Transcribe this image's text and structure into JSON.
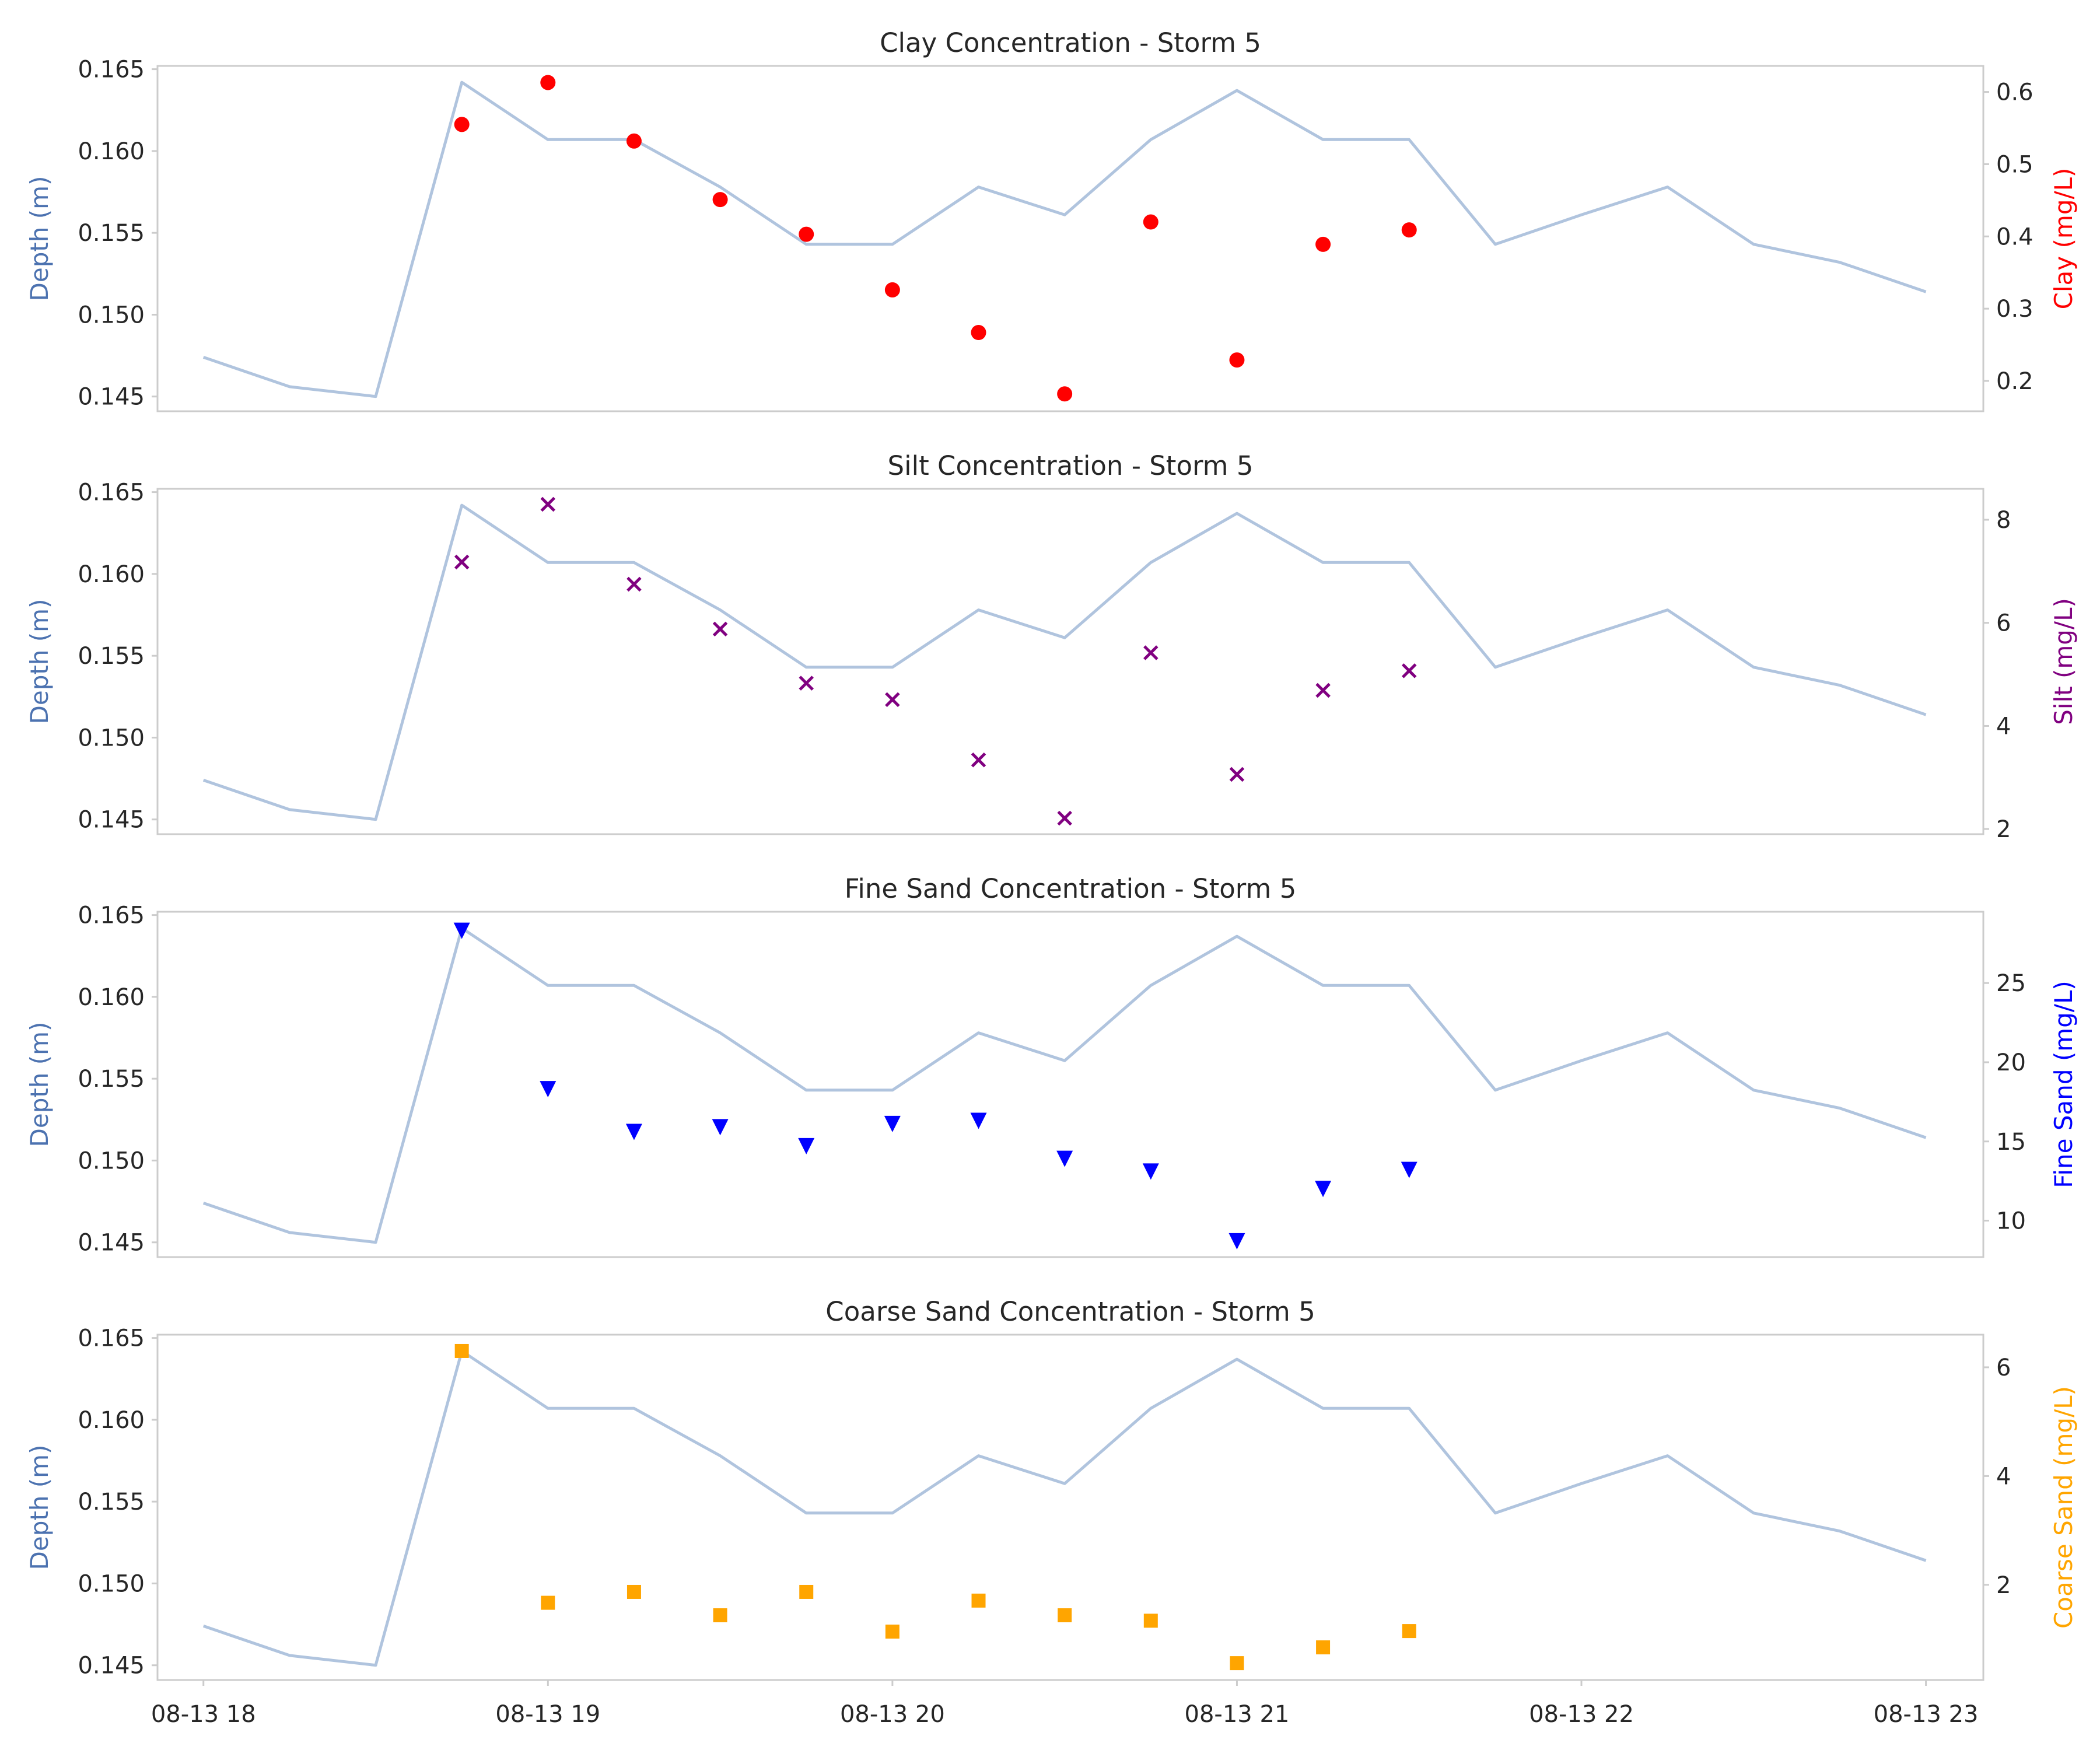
{
  "figure": {
    "depth_axis_label": "Depth (m)",
    "depth_color": "#4c72b0",
    "depth_line_color": "#b0c4de",
    "frame_color": "#cccccc",
    "text_color": "#262626"
  },
  "chart_data": [
    {
      "type": "line+scatter",
      "title": "Clay Concentration - Storm 5",
      "ylabel_left": "Depth (m)",
      "ylabel_right": "Clay (mg/L)",
      "right_color": "#ff0000",
      "marker": "circle",
      "ylim_left": [
        0.1441,
        0.1652
      ],
      "yticks_left": [
        "0.145",
        "0.150",
        "0.155",
        "0.160",
        "0.165"
      ],
      "ylim_right": [
        0.158,
        0.636
      ],
      "yticks_right": [
        "0.2",
        "0.3",
        "0.4",
        "0.5",
        "0.6"
      ],
      "xlim": [
        "08-13 17:52",
        "08-13 23:10"
      ],
      "xticks": [
        "08-13 18",
        "08-13 19",
        "08-13 20",
        "08-13 21",
        "08-13 22",
        "08-13 23"
      ],
      "grid": false,
      "depth_series": {
        "name": "Depth (m)",
        "x": [
          "08-13 18:00",
          "08-13 18:15",
          "08-13 18:30",
          "08-13 18:45",
          "08-13 19:00",
          "08-13 19:15",
          "08-13 19:30",
          "08-13 19:45",
          "08-13 20:00",
          "08-13 20:15",
          "08-13 20:30",
          "08-13 20:45",
          "08-13 21:00",
          "08-13 21:15",
          "08-13 21:30",
          "08-13 21:45",
          "08-13 22:00",
          "08-13 22:15",
          "08-13 22:30",
          "08-13 22:45",
          "08-13 23:00"
        ],
        "y": [
          0.1474,
          0.1456,
          0.145,
          0.1642,
          0.1607,
          0.1607,
          0.1578,
          0.1543,
          0.1543,
          0.1578,
          0.1561,
          0.1607,
          0.1637,
          0.1607,
          0.1607,
          0.1543,
          0.1561,
          0.1578,
          0.1543,
          0.1532,
          0.1514
        ]
      },
      "concentration_series": {
        "name": "Clay (mg/L)",
        "x": [
          "08-13 18:45",
          "08-13 19:00",
          "08-13 19:15",
          "08-13 19:30",
          "08-13 19:45",
          "08-13 20:00",
          "08-13 20:15",
          "08-13 20:30",
          "08-13 20:45",
          "08-13 21:00",
          "08-13 21:15",
          "08-13 21:30"
        ],
        "y": [
          0.555,
          0.613,
          0.532,
          0.451,
          0.403,
          0.326,
          0.267,
          0.182,
          0.42,
          0.229,
          0.389,
          0.409
        ]
      }
    },
    {
      "type": "line+scatter",
      "title": "Silt Concentration - Storm 5",
      "ylabel_left": "Depth (m)",
      "ylabel_right": "Silt (mg/L)",
      "right_color": "#800080",
      "marker": "x",
      "ylim_left": [
        0.1441,
        0.1652
      ],
      "yticks_left": [
        "0.145",
        "0.150",
        "0.155",
        "0.160",
        "0.165"
      ],
      "ylim_right": [
        1.9,
        8.6
      ],
      "yticks_right": [
        "2",
        "4",
        "6",
        "8"
      ],
      "xlim": [
        "08-13 17:52",
        "08-13 23:10"
      ],
      "xticks": [
        "08-13 18",
        "08-13 19",
        "08-13 20",
        "08-13 21",
        "08-13 22",
        "08-13 23"
      ],
      "grid": false,
      "depth_series": {
        "name": "Depth (m)",
        "x": [
          "08-13 18:00",
          "08-13 18:15",
          "08-13 18:30",
          "08-13 18:45",
          "08-13 19:00",
          "08-13 19:15",
          "08-13 19:30",
          "08-13 19:45",
          "08-13 20:00",
          "08-13 20:15",
          "08-13 20:30",
          "08-13 20:45",
          "08-13 21:00",
          "08-13 21:15",
          "08-13 21:30",
          "08-13 21:45",
          "08-13 22:00",
          "08-13 22:15",
          "08-13 22:30",
          "08-13 22:45",
          "08-13 23:00"
        ],
        "y": [
          0.1474,
          0.1456,
          0.145,
          0.1642,
          0.1607,
          0.1607,
          0.1578,
          0.1543,
          0.1543,
          0.1578,
          0.1561,
          0.1607,
          0.1637,
          0.1607,
          0.1607,
          0.1543,
          0.1561,
          0.1578,
          0.1543,
          0.1532,
          0.1514
        ]
      },
      "concentration_series": {
        "name": "Silt (mg/L)",
        "x": [
          "08-13 18:45",
          "08-13 19:00",
          "08-13 19:15",
          "08-13 19:30",
          "08-13 19:45",
          "08-13 20:00",
          "08-13 20:15",
          "08-13 20:30",
          "08-13 20:45",
          "08-13 21:00",
          "08-13 21:15",
          "08-13 21:30"
        ],
        "y": [
          7.18,
          8.3,
          6.75,
          5.88,
          4.83,
          4.51,
          3.34,
          2.21,
          5.42,
          3.06,
          4.69,
          5.07
        ]
      }
    },
    {
      "type": "line+scatter",
      "title": "Fine Sand Concentration - Storm 5",
      "ylabel_left": "Depth (m)",
      "ylabel_right": "Fine Sand (mg/L)",
      "right_color": "#0000ff",
      "marker": "triangle-down",
      "ylim_left": [
        0.1441,
        0.1652
      ],
      "yticks_left": [
        "0.145",
        "0.150",
        "0.155",
        "0.160",
        "0.165"
      ],
      "ylim_right": [
        7.7,
        29.5
      ],
      "yticks_right": [
        "10",
        "15",
        "20",
        "25"
      ],
      "xlim": [
        "08-13 17:52",
        "08-13 23:10"
      ],
      "xticks": [
        "08-13 18",
        "08-13 19",
        "08-13 20",
        "08-13 21",
        "08-13 22",
        "08-13 23"
      ],
      "grid": false,
      "depth_series": {
        "name": "Depth (m)",
        "x": [
          "08-13 18:00",
          "08-13 18:15",
          "08-13 18:30",
          "08-13 18:45",
          "08-13 19:00",
          "08-13 19:15",
          "08-13 19:30",
          "08-13 19:45",
          "08-13 20:00",
          "08-13 20:15",
          "08-13 20:30",
          "08-13 20:45",
          "08-13 21:00",
          "08-13 21:15",
          "08-13 21:30",
          "08-13 21:45",
          "08-13 22:00",
          "08-13 22:15",
          "08-13 22:30",
          "08-13 22:45",
          "08-13 23:00"
        ],
        "y": [
          0.1474,
          0.1456,
          0.145,
          0.1642,
          0.1607,
          0.1607,
          0.1578,
          0.1543,
          0.1543,
          0.1578,
          0.1561,
          0.1607,
          0.1637,
          0.1607,
          0.1607,
          0.1543,
          0.1561,
          0.1578,
          0.1543,
          0.1532,
          0.1514
        ]
      },
      "concentration_series": {
        "name": "Fine Sand (mg/L)",
        "x": [
          "08-13 18:45",
          "08-13 19:00",
          "08-13 19:15",
          "08-13 19:30",
          "08-13 19:45",
          "08-13 20:00",
          "08-13 20:15",
          "08-13 20:30",
          "08-13 20:45",
          "08-13 21:00",
          "08-13 21:15",
          "08-13 21:30"
        ],
        "y": [
          28.3,
          18.3,
          15.6,
          15.9,
          14.7,
          16.1,
          16.3,
          13.9,
          13.1,
          8.7,
          12.0,
          13.2
        ]
      }
    },
    {
      "type": "line+scatter",
      "title": "Coarse Sand Concentration - Storm 5",
      "ylabel_left": "Depth (m)",
      "ylabel_right": "Coarse Sand (mg/L)",
      "right_color": "#ffa500",
      "marker": "square",
      "ylim_left": [
        0.1441,
        0.1652
      ],
      "yticks_left": [
        "0.145",
        "0.150",
        "0.155",
        "0.160",
        "0.165"
      ],
      "ylim_right": [
        0.25,
        6.6
      ],
      "yticks_right": [
        "2",
        "4",
        "6"
      ],
      "xlim": [
        "08-13 17:52",
        "08-13 23:10"
      ],
      "xticks": [
        "08-13 18",
        "08-13 19",
        "08-13 20",
        "08-13 21",
        "08-13 22",
        "08-13 23"
      ],
      "grid": false,
      "depth_series": {
        "name": "Depth (m)",
        "x": [
          "08-13 18:00",
          "08-13 18:15",
          "08-13 18:30",
          "08-13 18:45",
          "08-13 19:00",
          "08-13 19:15",
          "08-13 19:30",
          "08-13 19:45",
          "08-13 20:00",
          "08-13 20:15",
          "08-13 20:30",
          "08-13 20:45",
          "08-13 21:00",
          "08-13 21:15",
          "08-13 21:30",
          "08-13 21:45",
          "08-13 22:00",
          "08-13 22:15",
          "08-13 22:30",
          "08-13 22:45",
          "08-13 23:00"
        ],
        "y": [
          0.1474,
          0.1456,
          0.145,
          0.1642,
          0.1607,
          0.1607,
          0.1578,
          0.1543,
          0.1543,
          0.1578,
          0.1561,
          0.1607,
          0.1637,
          0.1607,
          0.1607,
          0.1543,
          0.1561,
          0.1578,
          0.1543,
          0.1532,
          0.1514
        ]
      },
      "concentration_series": {
        "name": "Coarse Sand (mg/L)",
        "x": [
          "08-13 18:45",
          "08-13 19:00",
          "08-13 19:15",
          "08-13 19:30",
          "08-13 19:45",
          "08-13 20:00",
          "08-13 20:15",
          "08-13 20:30",
          "08-13 20:45",
          "08-13 21:00",
          "08-13 21:15",
          "08-13 21:30"
        ],
        "y": [
          6.3,
          1.67,
          1.87,
          1.44,
          1.87,
          1.14,
          1.71,
          1.44,
          1.34,
          0.56,
          0.85,
          1.15
        ]
      }
    }
  ]
}
